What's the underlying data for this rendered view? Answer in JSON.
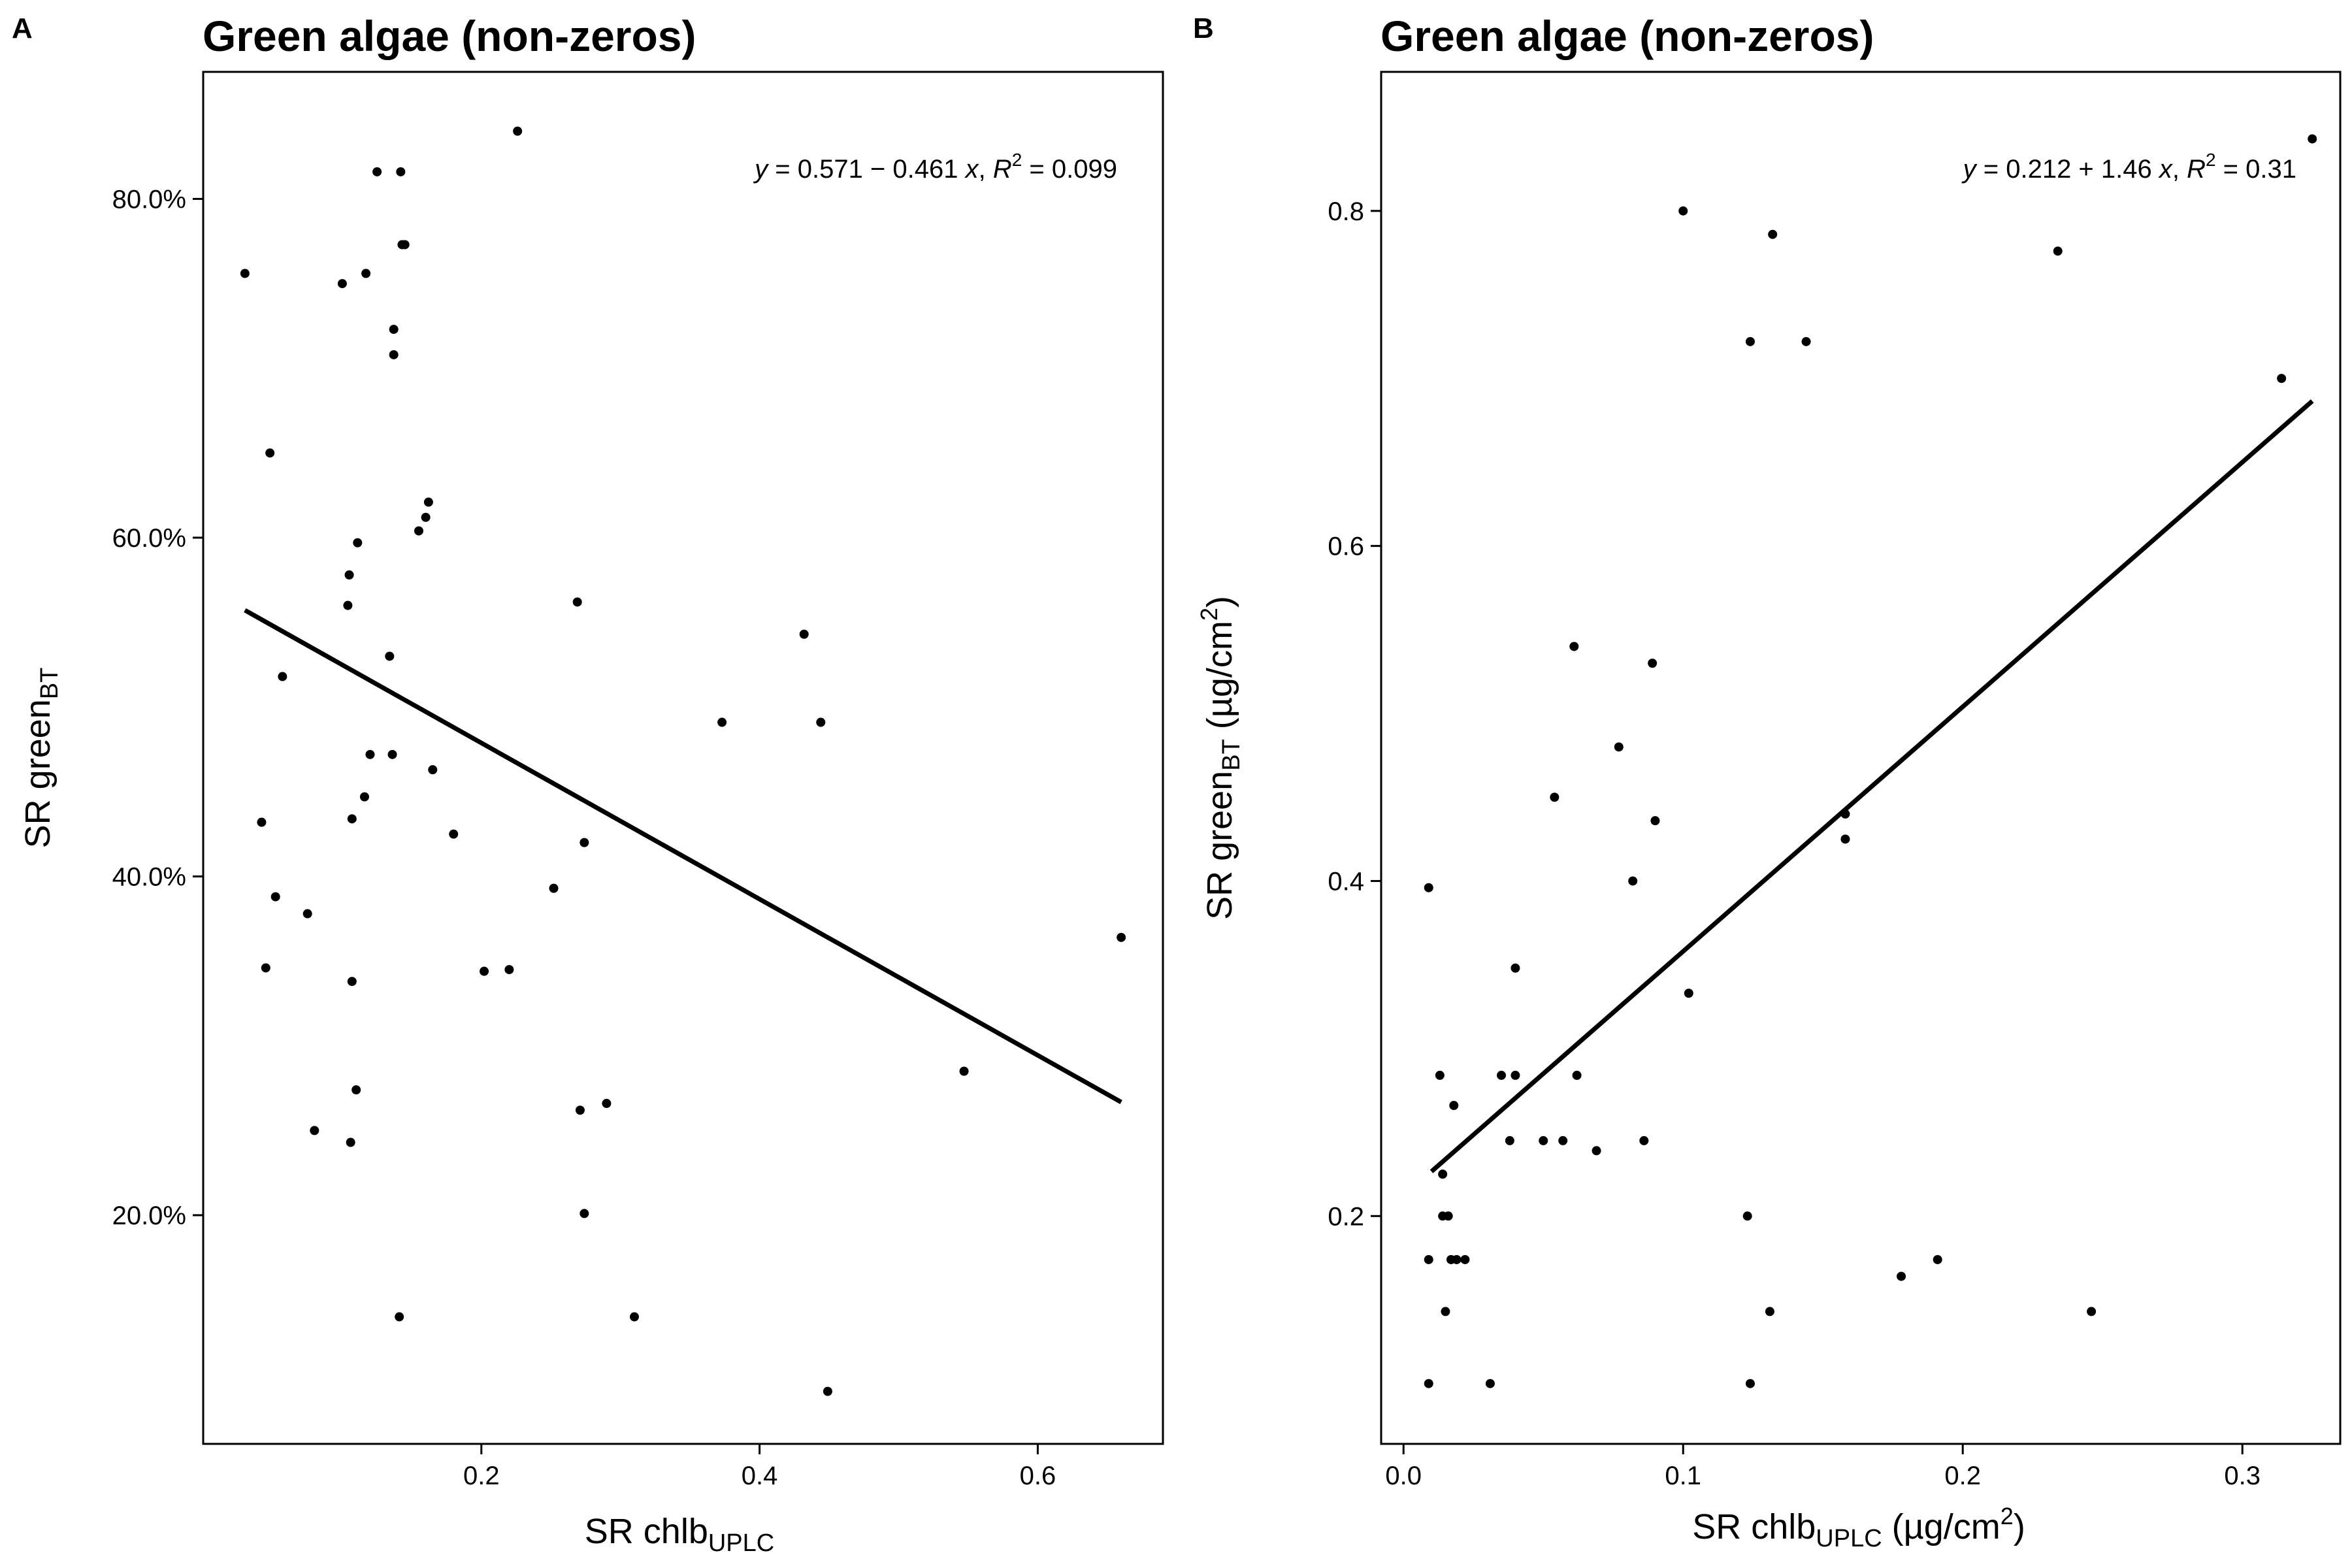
{
  "panels": [
    {
      "panel_label": "A",
      "chart_data": {
        "type": "scatter",
        "title": "Green algae (non-zeros)",
        "xlabel": "SR chlb",
        "xlabel_sub": "UPLC",
        "xlabel_unit": "",
        "ylabel": "SR green",
        "ylabel_sub": "BT",
        "ylabel_unit": "",
        "xlim": [
          0.0,
          0.69
        ],
        "ylim": [
          0.065,
          0.875
        ],
        "x_ticks": [
          0.2,
          0.4,
          0.6
        ],
        "x_tick_labels": [
          "0.2",
          "0.4",
          "0.6"
        ],
        "y_ticks": [
          0.2,
          0.4,
          0.6,
          0.8
        ],
        "y_tick_labels": [
          "20.0%",
          "40.0%",
          "60.0%",
          "80.0%"
        ],
        "grid": false,
        "legend": "none",
        "annotation": {
          "y": "y",
          "eq": " = 0.571 − 0.461 ",
          "x": "x",
          "r2lead": ", ",
          "R": "R",
          "sup": "2",
          "r2": " = 0.099"
        },
        "fit_line": {
          "intercept": 0.571,
          "slope": -0.461,
          "x_range": [
            0.03,
            0.66
          ]
        },
        "points": [
          [
            0.03,
            0.756
          ],
          [
            0.042,
            0.432
          ],
          [
            0.045,
            0.346
          ],
          [
            0.048,
            0.65
          ],
          [
            0.052,
            0.388
          ],
          [
            0.057,
            0.518
          ],
          [
            0.075,
            0.378
          ],
          [
            0.08,
            0.25
          ],
          [
            0.1,
            0.75
          ],
          [
            0.104,
            0.56
          ],
          [
            0.105,
            0.578
          ],
          [
            0.106,
            0.243
          ],
          [
            0.107,
            0.338
          ],
          [
            0.107,
            0.434
          ],
          [
            0.11,
            0.274
          ],
          [
            0.111,
            0.597
          ],
          [
            0.116,
            0.447
          ],
          [
            0.117,
            0.756
          ],
          [
            0.12,
            0.472
          ],
          [
            0.125,
            0.816
          ],
          [
            0.134,
            0.53
          ],
          [
            0.136,
            0.472
          ],
          [
            0.137,
            0.723
          ],
          [
            0.137,
            0.708
          ],
          [
            0.141,
            0.14
          ],
          [
            0.142,
            0.816
          ],
          [
            0.143,
            0.773
          ],
          [
            0.145,
            0.773
          ],
          [
            0.155,
            0.604
          ],
          [
            0.16,
            0.612
          ],
          [
            0.162,
            0.621
          ],
          [
            0.165,
            0.463
          ],
          [
            0.18,
            0.425
          ],
          [
            0.202,
            0.344
          ],
          [
            0.22,
            0.345
          ],
          [
            0.226,
            0.84
          ],
          [
            0.252,
            0.393
          ],
          [
            0.269,
            0.562
          ],
          [
            0.271,
            0.262
          ],
          [
            0.274,
            0.201
          ],
          [
            0.274,
            0.42
          ],
          [
            0.29,
            0.266
          ],
          [
            0.31,
            0.14
          ],
          [
            0.373,
            0.491
          ],
          [
            0.432,
            0.543
          ],
          [
            0.444,
            0.491
          ],
          [
            0.449,
            0.096
          ],
          [
            0.547,
            0.285
          ],
          [
            0.66,
            0.364
          ]
        ]
      }
    },
    {
      "panel_label": "B",
      "chart_data": {
        "type": "scatter",
        "title": "Green algae (non-zeros)",
        "xlabel": "SR chlb",
        "xlabel_sub": "UPLC",
        "xlabel_unit": " (µg/cm",
        "xlabel_unit_sup": "2",
        "xlabel_unit_end": ")",
        "ylabel": "SR green",
        "ylabel_sub": "BT",
        "ylabel_unit": " (µg/cm",
        "ylabel_unit_sup": "2",
        "ylabel_unit_end": ")",
        "xlim": [
          -0.008,
          0.335
        ],
        "ylim": [
          0.064,
          0.883
        ],
        "x_ticks": [
          0.0,
          0.1,
          0.2,
          0.3
        ],
        "x_tick_labels": [
          "0.0",
          "0.1",
          "0.2",
          "0.3"
        ],
        "y_ticks": [
          0.2,
          0.4,
          0.6,
          0.8
        ],
        "y_tick_labels": [
          "0.2",
          "0.4",
          "0.6",
          "0.8"
        ],
        "grid": false,
        "legend": "none",
        "annotation": {
          "y": "y",
          "eq": " = 0.212 + 1.46 ",
          "x": "x",
          "r2lead": ", ",
          "R": "R",
          "sup": "2",
          "r2": " = 0.31"
        },
        "fit_line": {
          "intercept": 0.212,
          "slope": 1.46,
          "x_range": [
            0.01,
            0.325
          ]
        },
        "points": [
          [
            0.009,
            0.396
          ],
          [
            0.009,
            0.174
          ],
          [
            0.009,
            0.1
          ],
          [
            0.013,
            0.284
          ],
          [
            0.014,
            0.225
          ],
          [
            0.014,
            0.2
          ],
          [
            0.015,
            0.143
          ],
          [
            0.016,
            0.2
          ],
          [
            0.017,
            0.174
          ],
          [
            0.018,
            0.266
          ],
          [
            0.019,
            0.174
          ],
          [
            0.022,
            0.174
          ],
          [
            0.031,
            0.1
          ],
          [
            0.035,
            0.284
          ],
          [
            0.038,
            0.245
          ],
          [
            0.04,
            0.348
          ],
          [
            0.04,
            0.284
          ],
          [
            0.05,
            0.245
          ],
          [
            0.054,
            0.45
          ],
          [
            0.057,
            0.245
          ],
          [
            0.061,
            0.54
          ],
          [
            0.062,
            0.284
          ],
          [
            0.069,
            0.239
          ],
          [
            0.077,
            0.48
          ],
          [
            0.082,
            0.4
          ],
          [
            0.086,
            0.245
          ],
          [
            0.089,
            0.53
          ],
          [
            0.09,
            0.436
          ],
          [
            0.1,
            0.8
          ],
          [
            0.102,
            0.333
          ],
          [
            0.123,
            0.2
          ],
          [
            0.124,
            0.722
          ],
          [
            0.124,
            0.1
          ],
          [
            0.131,
            0.143
          ],
          [
            0.132,
            0.786
          ],
          [
            0.144,
            0.722
          ],
          [
            0.158,
            0.44
          ],
          [
            0.158,
            0.425
          ],
          [
            0.178,
            0.164
          ],
          [
            0.191,
            0.174
          ],
          [
            0.234,
            0.776
          ],
          [
            0.246,
            0.143
          ],
          [
            0.314,
            0.7
          ],
          [
            0.325,
            0.843
          ]
        ]
      }
    }
  ]
}
